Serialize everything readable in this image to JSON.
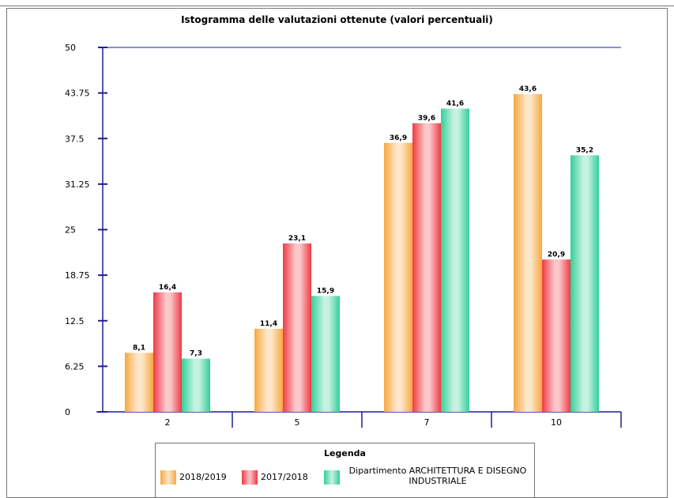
{
  "chart_data": {
    "type": "bar",
    "title": "Istogramma delle valutazioni ottenute (valori percentuali)",
    "categories": [
      "2",
      "5",
      "7",
      "10"
    ],
    "ylim": [
      0,
      50
    ],
    "yticks": [
      "0",
      "6.25",
      "12.5",
      "18.75",
      "25",
      "31.25",
      "37.5",
      "43.75",
      "50"
    ],
    "series": [
      {
        "name": "2018/2019",
        "color": "#f7a840",
        "values": [
          8.1,
          11.4,
          36.9,
          43.6
        ],
        "labels": [
          "8,1",
          "11,4",
          "36,9",
          "43,6"
        ]
      },
      {
        "name": "2017/2018",
        "color": "#ee3b44",
        "values": [
          16.4,
          23.1,
          39.6,
          20.9
        ],
        "labels": [
          "16,4",
          "23,1",
          "39,6",
          "20,9"
        ]
      },
      {
        "name": "Dipartimento ARCHITETTURA E DISEGNO INDUSTRIALE",
        "color": "#35cf98",
        "values": [
          7.3,
          15.9,
          41.6,
          35.2
        ],
        "labels": [
          "7,3",
          "15,9",
          "41,6",
          "35,2"
        ]
      }
    ],
    "legend_title": "Legenda",
    "grid": false,
    "legend_position": "bottom"
  }
}
